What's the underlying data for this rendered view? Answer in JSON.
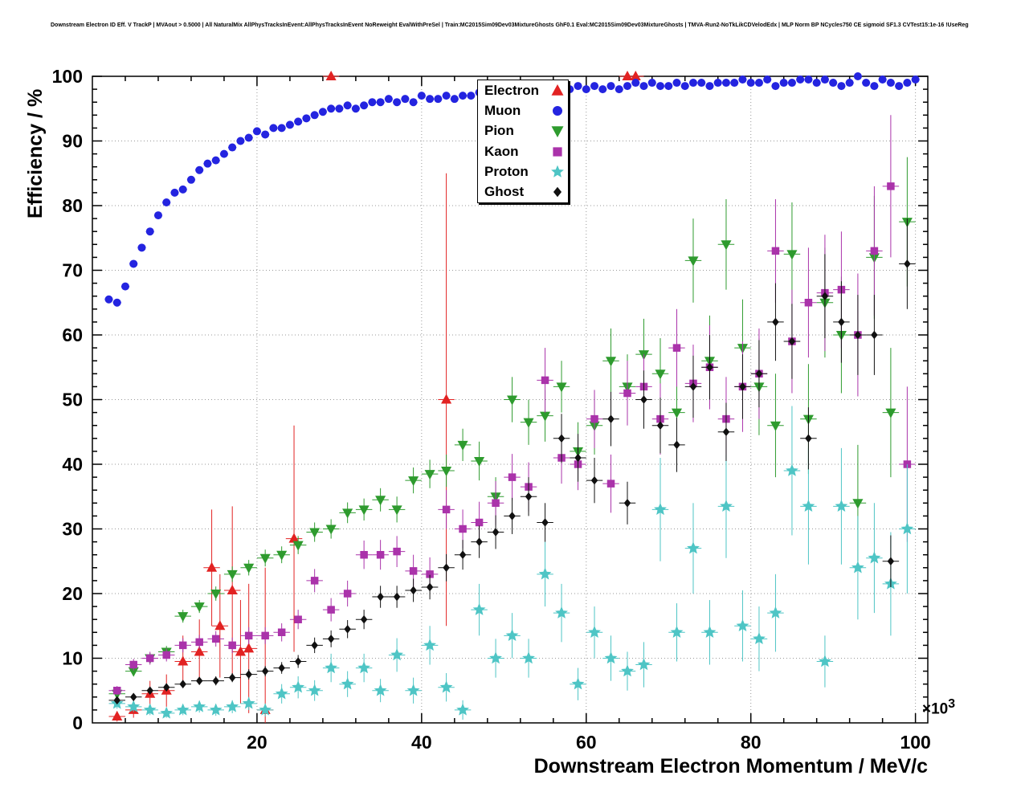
{
  "axes": {
    "x_exp_base": "×10",
    "x_exp_power": "3"
  },
  "chart_data": {
    "type": "scatter",
    "title": "Downstream Electron ID Eff. V TrackP | MVAout > 0.5000 | All NaturalMix AllPhysTracksInEvent:AllPhysTracksInEvent NoReweight EvalWithPreSel | Train:MC2015Sim09Dev03MixtureGhosts GhF0.1 Eval:MC2015Sim09Dev03MixtureGhosts | TMVA-Run2-NoTkLikCDVelodEdx | MLP Norm BP NCycles750 CE sigmoid SF1.3 CVTest15:1e-16 !UseReg",
    "xlabel": "Downstream Electron Momentum / MeV/c",
    "ylabel": "Efficiency / %",
    "x_units": "10^3 MeV/c",
    "xlim": [
      0,
      101.5
    ],
    "ylim": [
      0,
      100
    ],
    "x_ticks": [
      20,
      40,
      60,
      80,
      100
    ],
    "y_ticks": [
      0,
      10,
      20,
      30,
      40,
      50,
      60,
      70,
      80,
      90,
      100
    ],
    "x_major": 20,
    "x_minor": 4,
    "y_major": 10,
    "y_minor": 2,
    "grid": "dotted",
    "legend_position": "top-center",
    "series": [
      {
        "name": "Electron",
        "color": "#e22222",
        "marker": "triangle-up",
        "size": 6,
        "xerr": 1,
        "x": [
          3,
          5,
          7,
          9,
          11,
          13,
          14.5,
          15.5,
          17,
          18,
          19,
          21,
          24.5,
          29,
          43,
          65,
          66
        ],
        "y": [
          1,
          2,
          4.5,
          5,
          9.5,
          11,
          24,
          15,
          20.5,
          11,
          11.5,
          2,
          28.5,
          100,
          50,
          100,
          100
        ],
        "yerr": [
          0.8,
          1.2,
          2,
          2.5,
          4,
          5,
          9,
          8,
          13,
          8,
          10,
          22,
          17.5,
          0.4,
          35,
          0.4,
          0.4
        ]
      },
      {
        "name": "Muon",
        "color": "#2424e0",
        "marker": "circle",
        "size": 4.5,
        "xerr": 0.5,
        "x_start": 2,
        "x_step": 1,
        "y": [
          65.5,
          65,
          67.5,
          71,
          73.5,
          76,
          78.5,
          80.5,
          82,
          82.5,
          84,
          85.5,
          86.5,
          87,
          88,
          89,
          90,
          90.5,
          91.5,
          91,
          92,
          92,
          92.5,
          93,
          93.5,
          94,
          94.5,
          95,
          95,
          95.5,
          95,
          95.5,
          96,
          96,
          96.5,
          96,
          96.5,
          96,
          97,
          96.5,
          96.5,
          97,
          96.5,
          97,
          97,
          97.5,
          97,
          97.5,
          98,
          97.5,
          98,
          97.5,
          98,
          98,
          98.5,
          98,
          98,
          98.5,
          98,
          98.5,
          98,
          98.5,
          98,
          98.5,
          99,
          98.5,
          99,
          98.5,
          98.5,
          99,
          98.5,
          99,
          99,
          98.5,
          99,
          99,
          99,
          99.5,
          99,
          99,
          99.5,
          98.5,
          99,
          99,
          99.5,
          99.5,
          99,
          99.5,
          99,
          98.5,
          99,
          100,
          99,
          98.5,
          99.5,
          99,
          98.5,
          99,
          99.5
        ],
        "yerr": 0.4
      },
      {
        "name": "Pion",
        "color": "#2e9b2e",
        "marker": "triangle-down",
        "size": 6,
        "xerr": 1,
        "x_start": 3,
        "x_step": 2,
        "y": [
          4.5,
          8,
          10,
          11,
          16.5,
          18,
          20,
          23,
          24,
          25.5,
          26,
          27.5,
          29.5,
          30,
          32.5,
          33,
          34.5,
          33,
          37.5,
          38.5,
          39,
          43,
          40.5,
          35,
          50,
          46.5,
          47.5,
          52,
          42,
          46,
          56,
          52,
          57,
          54,
          48,
          71.5,
          56,
          74,
          58,
          52,
          46,
          72.5,
          47,
          65,
          60,
          34,
          72,
          48,
          77.5
        ],
        "yerr": [
          0.5,
          0.7,
          0.8,
          0.9,
          1,
          1,
          1.1,
          1.2,
          1.2,
          1.3,
          1.3,
          1.4,
          1.5,
          1.5,
          1.6,
          1.7,
          1.8,
          2,
          2,
          2.2,
          2.5,
          2.5,
          3,
          3,
          3.5,
          3.5,
          4,
          4,
          4.5,
          4.5,
          5,
          5,
          5.5,
          5.5,
          6,
          6.5,
          7,
          7,
          7.5,
          7.5,
          8,
          8,
          8.5,
          8.5,
          9,
          9,
          9.5,
          10,
          10
        ]
      },
      {
        "name": "Kaon",
        "color": "#aa33aa",
        "marker": "square",
        "size": 5,
        "xerr": 1,
        "x_start": 3,
        "x_step": 2,
        "y": [
          5,
          9,
          10,
          10.5,
          12,
          12.5,
          13,
          12,
          13.5,
          13.5,
          14,
          16,
          22,
          17.5,
          20,
          26,
          26,
          26.5,
          23.5,
          23,
          33,
          30,
          31,
          34,
          38,
          36.5,
          53,
          41,
          40,
          47,
          37,
          51,
          52,
          47,
          58,
          52.5,
          55,
          47,
          52,
          54,
          73,
          59,
          65,
          66.5,
          67,
          60,
          73,
          83,
          40
        ],
        "yerr": [
          0.7,
          0.9,
          1,
          1,
          1.1,
          1.1,
          1.2,
          1.2,
          1.3,
          1.3,
          1.4,
          1.5,
          1.8,
          1.8,
          2,
          2.2,
          2.3,
          2.4,
          2.5,
          2.6,
          3,
          3,
          3.2,
          3.4,
          3.6,
          3.8,
          5,
          4,
          4,
          4.5,
          4.5,
          5,
          5,
          5.5,
          6,
          6,
          6.5,
          6.5,
          7,
          7,
          8,
          8,
          8.5,
          9,
          9,
          9.5,
          10,
          11,
          12
        ]
      },
      {
        "name": "Proton",
        "color": "#4ec5c5",
        "marker": "star",
        "size": 7,
        "xerr": 1,
        "x_start": 3,
        "x_step": 2,
        "y": [
          3,
          2.5,
          2,
          1.5,
          2,
          2.5,
          2,
          2.5,
          3,
          2,
          4.5,
          5.5,
          5,
          8.5,
          6,
          8.5,
          5,
          10.5,
          5,
          12,
          5.5,
          2,
          17.5,
          10,
          13.5,
          10,
          23,
          17,
          6,
          14,
          10,
          8,
          9,
          33,
          14,
          27,
          14,
          33.5,
          15,
          13,
          17,
          39,
          33.5,
          9.5,
          33.5,
          24,
          25.5,
          21.5,
          30
        ],
        "yerr": [
          0.8,
          0.8,
          0.8,
          0.7,
          0.8,
          0.9,
          0.9,
          1,
          1,
          1,
          1.5,
          1.7,
          1.6,
          2.2,
          2,
          2.2,
          1.8,
          2.6,
          2,
          3,
          2.2,
          1.5,
          4,
          3,
          3.5,
          3,
          5,
          4.5,
          2.5,
          4,
          3.5,
          3,
          3.5,
          8,
          4.5,
          7,
          5,
          8,
          5.5,
          5,
          6,
          10,
          9,
          4,
          9,
          8,
          8.5,
          8,
          10
        ]
      },
      {
        "name": "Ghost",
        "color": "#111111",
        "marker": "diamond",
        "size": 4.5,
        "xerr": 1,
        "x_start": 3,
        "x_step": 2,
        "y": [
          3.5,
          4,
          5,
          5.5,
          6,
          6.5,
          6.5,
          7,
          7.5,
          8,
          8.5,
          9.5,
          12,
          13,
          14.5,
          16,
          19.5,
          19.5,
          20.5,
          21,
          24,
          26,
          28,
          29.5,
          32,
          35,
          31,
          44,
          41,
          37.5,
          47,
          34,
          50,
          46,
          43,
          52,
          55,
          45,
          52,
          54,
          62,
          59,
          44,
          66,
          62,
          60,
          60,
          25,
          71
        ],
        "yerr": [
          0.4,
          0.4,
          0.5,
          0.5,
          0.6,
          0.6,
          0.7,
          0.7,
          0.8,
          0.8,
          0.9,
          1,
          1.2,
          1.3,
          1.4,
          1.5,
          1.7,
          1.7,
          1.8,
          1.9,
          2.1,
          2.3,
          2.5,
          2.6,
          2.8,
          3,
          3,
          3.8,
          3.7,
          3.5,
          4.2,
          3.3,
          4.5,
          4.3,
          4.2,
          4.8,
          5,
          4.5,
          5,
          5.2,
          6,
          5.8,
          4.8,
          6.5,
          6.3,
          6.2,
          6.2,
          4,
          7
        ]
      }
    ]
  }
}
